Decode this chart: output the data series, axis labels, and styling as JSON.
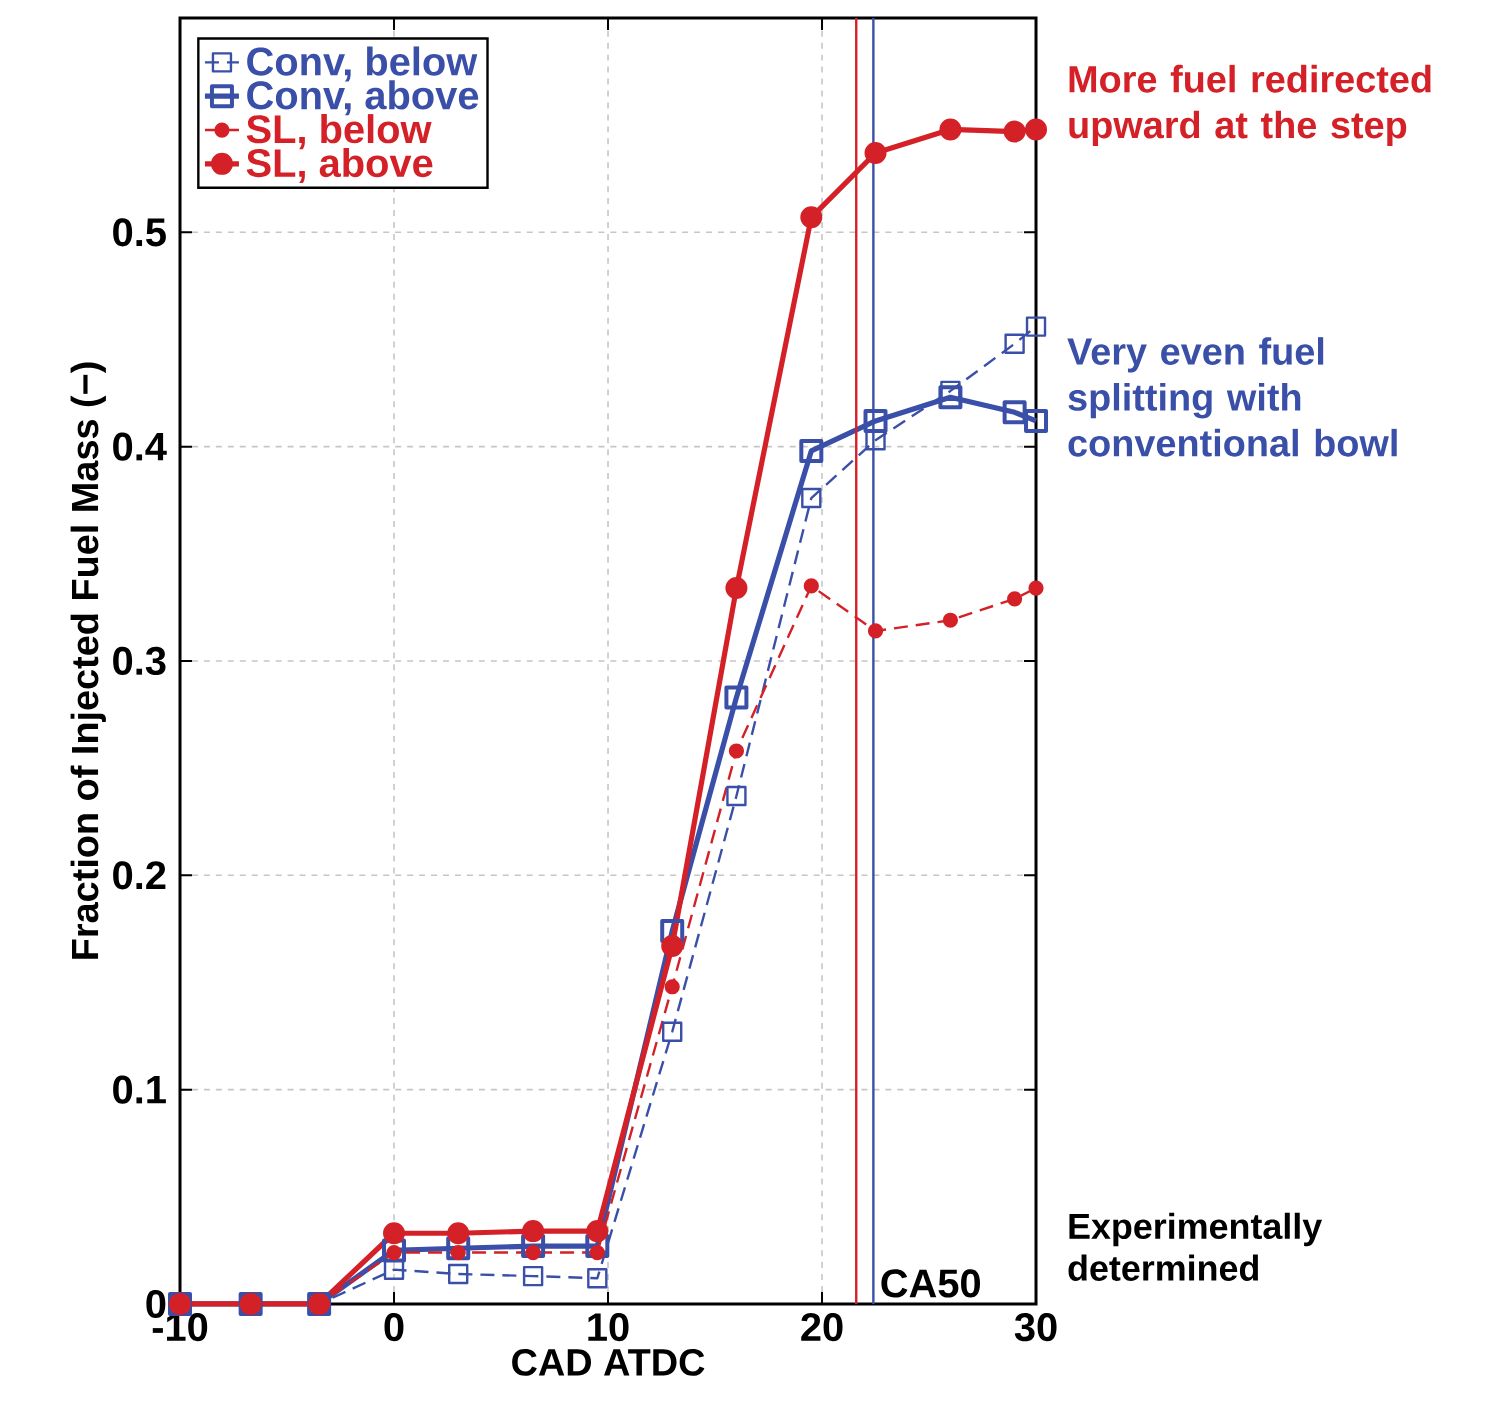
{
  "chart_data": {
    "type": "line",
    "xlabel": "CAD ATDC",
    "ylabel": "Fraction of Injected Fuel Mass (−)",
    "xlim": [
      -10,
      30
    ],
    "ylim": [
      0,
      0.6
    ],
    "xticks": [
      -10,
      0,
      10,
      20,
      30
    ],
    "yticks": [
      0,
      0.1,
      0.2,
      0.3,
      0.4,
      0.5
    ],
    "grid": true,
    "legend": "top left",
    "x": [
      -10,
      -6.7,
      -3.5,
      0,
      3,
      6.5,
      9.5,
      13,
      16,
      19.5,
      22.5,
      26,
      29,
      30
    ],
    "series": [
      {
        "name": "Conv, below",
        "color": "#3a4fa8",
        "marker": "square",
        "line_style": "dashed",
        "values": [
          0,
          0,
          0,
          0.016,
          0.014,
          0.013,
          0.012,
          0.127,
          0.237,
          0.376,
          0.403,
          0.426,
          0.448,
          0.456
        ]
      },
      {
        "name": "Conv, above",
        "color": "#3a4fa8",
        "marker": "square",
        "line_style": "solid",
        "values": [
          0,
          0,
          0,
          0.025,
          0.026,
          0.027,
          0.027,
          0.174,
          0.283,
          0.398,
          0.412,
          0.423,
          0.416,
          0.412
        ]
      },
      {
        "name": "SL, below",
        "color": "#d42027",
        "marker": "circle",
        "line_style": "dashed",
        "values": [
          0,
          0,
          0,
          0.024,
          0.024,
          0.024,
          0.024,
          0.148,
          0.258,
          0.335,
          0.314,
          0.319,
          0.329,
          0.334
        ]
      },
      {
        "name": "SL, above",
        "color": "#d42027",
        "marker": "circle",
        "line_style": "solid",
        "values": [
          0,
          0,
          0,
          0.033,
          0.033,
          0.034,
          0.034,
          0.167,
          0.334,
          0.507,
          0.537,
          0.548,
          0.547,
          0.548
        ]
      }
    ],
    "ref_lines": [
      {
        "axis": "x",
        "value": 21.6,
        "color": "#d42027"
      },
      {
        "axis": "x",
        "value": 22.4,
        "color": "#3a4fa8",
        "label": "CA50"
      }
    ],
    "annotations": [
      {
        "text": "More fuel redirected upward at the step",
        "x": 30,
        "y": 0.548
      },
      {
        "text": "Very even fuel splitting with conventional bowl",
        "x": 30,
        "y": 0.412
      },
      "Experimentally determined"
    ]
  }
}
